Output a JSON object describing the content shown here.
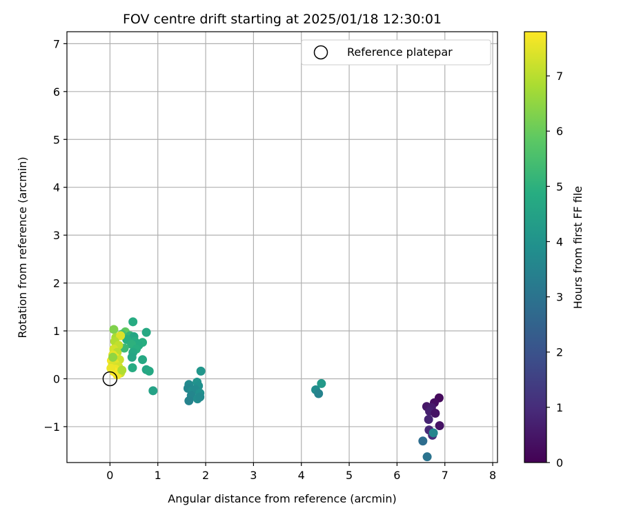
{
  "chart_data": {
    "type": "scatter",
    "title": "FOV centre drift starting at 2025/01/18 12:30:01",
    "xlabel": "Angular distance from reference (arcmin)",
    "ylabel": "Rotation from reference (arcmin)",
    "xlim": [
      -0.9,
      8.1
    ],
    "ylim": [
      -1.75,
      7.25
    ],
    "xticks": [
      0,
      1,
      2,
      3,
      4,
      5,
      6,
      7,
      8
    ],
    "yticks": [
      -1,
      0,
      1,
      2,
      3,
      4,
      5,
      6,
      7
    ],
    "grid": true,
    "legend": {
      "placement": "top-right",
      "entries": [
        {
          "label": "Reference platepar",
          "marker": "open-circle"
        }
      ]
    },
    "reference_point": {
      "label": "Reference platepar",
      "x": 0,
      "y": 0
    },
    "colorbar": {
      "label": "Hours from first FF file",
      "colormap": "viridis",
      "range": [
        0,
        7.8
      ],
      "ticks": [
        0,
        1,
        2,
        3,
        4,
        5,
        6,
        7
      ]
    },
    "points": [
      {
        "x": 6.88,
        "y": -0.4,
        "c": 0.2
      },
      {
        "x": 6.78,
        "y": -0.5,
        "c": 0.3
      },
      {
        "x": 6.62,
        "y": -0.58,
        "c": 0.5
      },
      {
        "x": 6.72,
        "y": -0.6,
        "c": 0.6
      },
      {
        "x": 6.68,
        "y": -0.68,
        "c": 0.7
      },
      {
        "x": 6.8,
        "y": -0.72,
        "c": 0.4
      },
      {
        "x": 6.66,
        "y": -0.85,
        "c": 0.8
      },
      {
        "x": 6.89,
        "y": -0.98,
        "c": 0.4
      },
      {
        "x": 6.67,
        "y": -1.07,
        "c": 0.9
      },
      {
        "x": 6.74,
        "y": -1.18,
        "c": 1.0
      },
      {
        "x": 6.76,
        "y": -1.13,
        "c": 3.6
      },
      {
        "x": 6.54,
        "y": -1.3,
        "c": 2.8
      },
      {
        "x": 6.63,
        "y": -1.63,
        "c": 3.0
      },
      {
        "x": 4.42,
        "y": -0.1,
        "c": 4.2
      },
      {
        "x": 4.3,
        "y": -0.23,
        "c": 3.8
      },
      {
        "x": 4.36,
        "y": -0.31,
        "c": 3.5
      },
      {
        "x": 1.9,
        "y": 0.16,
        "c": 4.1
      },
      {
        "x": 1.65,
        "y": -0.12,
        "c": 3.7
      },
      {
        "x": 1.63,
        "y": -0.2,
        "c": 3.6
      },
      {
        "x": 1.72,
        "y": -0.25,
        "c": 3.8
      },
      {
        "x": 1.82,
        "y": -0.07,
        "c": 4.0
      },
      {
        "x": 1.85,
        "y": -0.15,
        "c": 3.9
      },
      {
        "x": 1.78,
        "y": -0.22,
        "c": 3.7
      },
      {
        "x": 1.88,
        "y": -0.3,
        "c": 3.9
      },
      {
        "x": 1.7,
        "y": -0.35,
        "c": 3.6
      },
      {
        "x": 1.65,
        "y": -0.46,
        "c": 3.5
      },
      {
        "x": 1.83,
        "y": -0.42,
        "c": 3.8
      },
      {
        "x": 1.88,
        "y": -0.38,
        "c": 3.7
      },
      {
        "x": 0.48,
        "y": 1.19,
        "c": 4.8
      },
      {
        "x": 0.76,
        "y": 0.97,
        "c": 4.7
      },
      {
        "x": 0.32,
        "y": 0.98,
        "c": 5.9
      },
      {
        "x": 0.08,
        "y": 1.03,
        "c": 6.3
      },
      {
        "x": 0.25,
        "y": 0.93,
        "c": 5.5
      },
      {
        "x": 0.42,
        "y": 0.9,
        "c": 5.1
      },
      {
        "x": 0.5,
        "y": 0.88,
        "c": 4.6
      },
      {
        "x": 0.35,
        "y": 0.82,
        "c": 4.9
      },
      {
        "x": 0.52,
        "y": 0.78,
        "c": 4.8
      },
      {
        "x": 0.68,
        "y": 0.76,
        "c": 4.9
      },
      {
        "x": 0.6,
        "y": 0.7,
        "c": 4.8
      },
      {
        "x": 0.45,
        "y": 0.72,
        "c": 5.0
      },
      {
        "x": 0.3,
        "y": 0.64,
        "c": 5.3
      },
      {
        "x": 0.55,
        "y": 0.62,
        "c": 4.9
      },
      {
        "x": 0.48,
        "y": 0.55,
        "c": 4.7
      },
      {
        "x": 0.46,
        "y": 0.45,
        "c": 4.6
      },
      {
        "x": 0.68,
        "y": 0.4,
        "c": 4.7
      },
      {
        "x": 0.47,
        "y": 0.23,
        "c": 4.8
      },
      {
        "x": 0.76,
        "y": 0.19,
        "c": 4.6
      },
      {
        "x": 0.82,
        "y": 0.16,
        "c": 4.7
      },
      {
        "x": 0.9,
        "y": -0.25,
        "c": 4.5
      },
      {
        "x": 0.12,
        "y": 0.86,
        "c": 6.8
      },
      {
        "x": 0.22,
        "y": 0.9,
        "c": 7.4
      },
      {
        "x": 0.1,
        "y": 0.78,
        "c": 6.9
      },
      {
        "x": 0.18,
        "y": 0.7,
        "c": 7.1
      },
      {
        "x": 0.08,
        "y": 0.62,
        "c": 7.3
      },
      {
        "x": 0.15,
        "y": 0.55,
        "c": 7.0
      },
      {
        "x": 0.06,
        "y": 0.5,
        "c": 7.5
      },
      {
        "x": 0.12,
        "y": 0.44,
        "c": 7.6
      },
      {
        "x": 0.2,
        "y": 0.4,
        "c": 7.2
      },
      {
        "x": 0.03,
        "y": 0.38,
        "c": 7.7
      },
      {
        "x": 0.1,
        "y": 0.33,
        "c": 7.5
      },
      {
        "x": 0.05,
        "y": 0.28,
        "c": 7.4
      },
      {
        "x": 0.18,
        "y": 0.25,
        "c": 7.3
      },
      {
        "x": 0.12,
        "y": 0.2,
        "c": 7.6
      },
      {
        "x": 0.08,
        "y": 0.15,
        "c": 7.8
      },
      {
        "x": 0.22,
        "y": 0.12,
        "c": 7.2
      },
      {
        "x": 0.15,
        "y": 0.08,
        "c": 7.7
      },
      {
        "x": 0.25,
        "y": 0.18,
        "c": 6.9
      },
      {
        "x": 0.02,
        "y": 0.22,
        "c": 7.6
      },
      {
        "x": 0.06,
        "y": 0.45,
        "c": 6.5
      }
    ]
  }
}
